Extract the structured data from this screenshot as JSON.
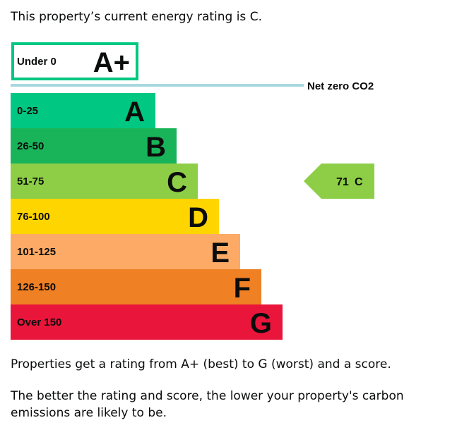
{
  "intro_text": "This property’s current energy rating is C.",
  "chart_data": {
    "type": "bar",
    "categories": [
      "A+",
      "A",
      "B",
      "C",
      "D",
      "E",
      "F",
      "G"
    ],
    "bands": [
      {
        "letter": "A+",
        "range": "Under 0",
        "color": "#ffffff",
        "border": "#00c781"
      },
      {
        "letter": "A",
        "range": "0-25",
        "color": "#00c781"
      },
      {
        "letter": "B",
        "range": "26-50",
        "color": "#19b459"
      },
      {
        "letter": "C",
        "range": "51-75",
        "color": "#8dce46"
      },
      {
        "letter": "D",
        "range": "76-100",
        "color": "#ffd500"
      },
      {
        "letter": "E",
        "range": "101-125",
        "color": "#fcaa65"
      },
      {
        "letter": "F",
        "range": "126-150",
        "color": "#ef8023"
      },
      {
        "letter": "G",
        "range": "Over 150",
        "color": "#e9153b"
      }
    ],
    "net_zero_label": "Net zero CO2",
    "net_zero_line_color": "#a8d8df",
    "current_rating": {
      "score": "71",
      "letter": "C",
      "color": "#8dce46"
    }
  },
  "footer": {
    "line1": "Properties get a rating from A+ (best) to G (worst) and a score.",
    "line2": "The better the rating and score, the lower your property's carbon emissions are likely to be."
  }
}
